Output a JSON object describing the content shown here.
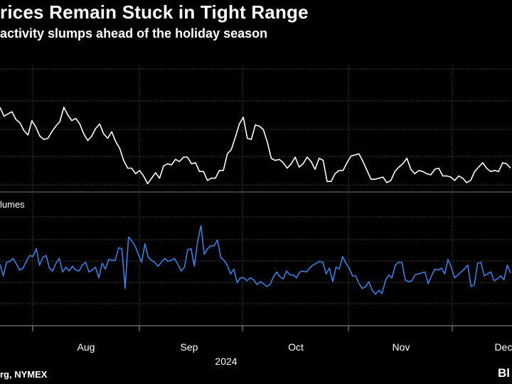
{
  "title": "rices Remain Stuck in Tight Range",
  "subtitle": "activity slumps ahead of the holiday season",
  "source": "rg, NYMEX",
  "logo": "Bl",
  "colors": {
    "background": "#000000",
    "price_line": "#ffffff",
    "volume_line": "#3d7fe0",
    "grid": "#555555"
  },
  "chart_data": [
    {
      "type": "line",
      "name": "prices",
      "x_range": [
        0,
        159
      ],
      "series": [
        {
          "values": [
            63,
            55,
            57,
            59,
            52,
            49,
            42,
            38,
            51,
            45,
            37,
            34,
            35,
            41,
            46,
            50,
            63,
            56,
            51,
            53,
            48,
            39,
            33,
            37,
            44,
            48,
            39,
            35,
            41,
            32,
            26,
            15,
            8,
            8,
            3,
            6,
            1,
            -6,
            -1,
            4,
            -1,
            10,
            12,
            11,
            16,
            14,
            18,
            18,
            12,
            13,
            5,
            5,
            -3,
            -1,
            -1,
            6,
            6,
            21,
            25,
            36,
            48,
            54,
            35,
            34,
            47,
            46,
            43,
            32,
            17,
            15,
            16,
            13,
            8,
            12,
            18,
            9,
            12,
            18,
            14,
            7,
            17,
            15,
            -4,
            -4,
            3,
            6,
            6,
            13,
            19,
            20,
            21,
            14,
            6,
            -2,
            -2,
            -1,
            0,
            -5,
            -3,
            5,
            9,
            12,
            17,
            7,
            3,
            6,
            5,
            3,
            2,
            7,
            8,
            1,
            1,
            0,
            -3,
            1,
            -1,
            -5,
            -3,
            5,
            9,
            13,
            8,
            5,
            6,
            5,
            13,
            12,
            8
          ],
          "x_start": 0
        }
      ]
    },
    {
      "type": "line",
      "name": "volumes",
      "label": "lumes",
      "x_range": [
        0,
        159
      ],
      "series": [
        {
          "values": [
            56,
            44,
            58,
            59,
            62,
            56,
            50,
            52,
            59,
            65,
            64,
            72,
            55,
            63,
            65,
            52,
            49,
            57,
            62,
            48,
            53,
            49,
            54,
            50,
            49,
            55,
            58,
            48,
            50,
            53,
            42,
            57,
            51,
            61,
            60,
            60,
            73,
            72,
            31,
            84,
            80,
            75,
            66,
            58,
            77,
            63,
            60,
            58,
            54,
            58,
            62,
            59,
            60,
            62,
            56,
            49,
            53,
            71,
            72,
            54,
            79,
            96,
            66,
            72,
            75,
            75,
            81,
            63,
            60,
            55,
            46,
            51,
            37,
            42,
            42,
            39,
            42,
            40,
            35,
            38,
            36,
            33,
            35,
            43,
            48,
            43,
            41,
            49,
            45,
            45,
            42,
            48,
            49,
            48,
            52,
            55,
            57,
            59,
            58,
            46,
            52,
            38,
            53,
            51,
            64,
            57,
            52,
            44,
            44,
            36,
            31,
            33,
            38,
            29,
            25,
            29,
            26,
            39,
            45,
            42,
            55,
            58,
            58,
            40,
            38,
            39,
            45,
            46,
            47,
            48,
            36,
            44,
            51,
            50,
            52,
            46,
            61,
            53,
            42,
            45,
            48,
            51,
            55,
            33,
            35,
            57,
            58,
            44,
            46,
            48,
            39,
            41,
            44,
            40,
            55,
            47
          ],
          "x_start": 0
        }
      ]
    }
  ],
  "axis": {
    "ticks": [
      {
        "label": "Aug",
        "x": 28
      },
      {
        "label": "Sep",
        "x": 60
      },
      {
        "label": "Oct",
        "x": 90
      },
      {
        "label": "Nov",
        "x": 122
      },
      {
        "label": "Dec",
        "x": 153
      }
    ],
    "year": {
      "label": "2024",
      "x": 73
    }
  }
}
